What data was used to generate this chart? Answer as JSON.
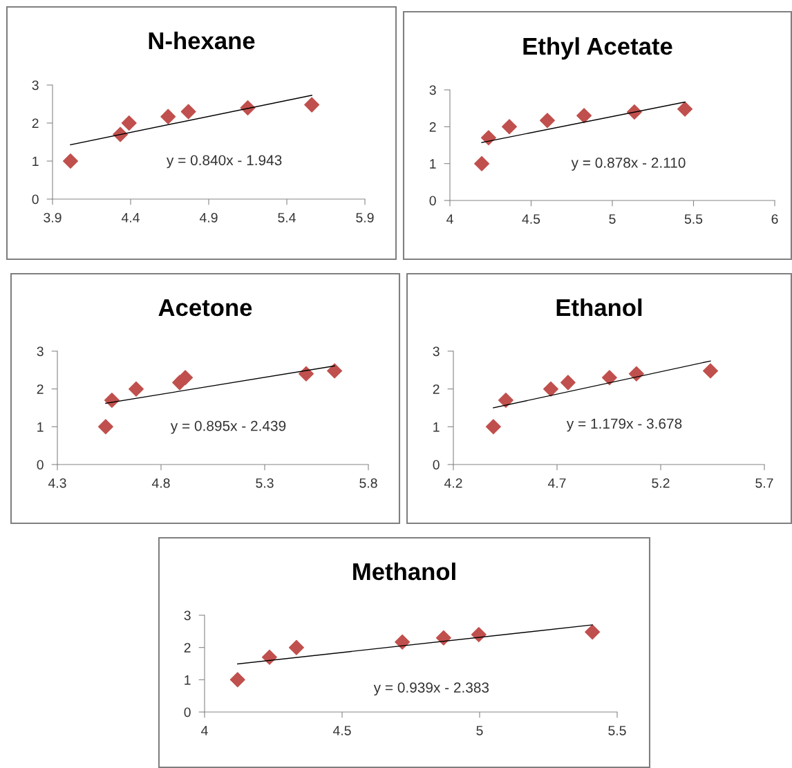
{
  "chart_data": [
    {
      "type": "scatter",
      "title": "N-hexane",
      "xlim": [
        3.9,
        5.9
      ],
      "xticks": [
        3.9,
        4.4,
        4.9,
        5.4,
        5.9
      ],
      "ylim": [
        0,
        3
      ],
      "yticks": [
        0,
        1,
        2,
        3
      ],
      "grid": false,
      "annotations": [
        "y = 0.840x - 1.943"
      ],
      "series": [
        {
          "type": "scatter",
          "marker": "diamond",
          "color": "#c0504d",
          "x": [
            4.015,
            4.334,
            4.39,
            4.64,
            4.77,
            5.15,
            5.56
          ],
          "values": [
            1,
            1.7,
            2,
            2.17,
            2.3,
            2.4,
            2.48
          ]
        },
        {
          "type": "line",
          "color": "#000000",
          "x": [
            4.015,
            5.56
          ],
          "values": [
            1.43,
            2.73
          ]
        }
      ]
    },
    {
      "type": "scatter",
      "title": "Ethyl Acetate",
      "xlim": [
        4,
        6
      ],
      "xticks": [
        4,
        4.5,
        5,
        5.5,
        6
      ],
      "ylim": [
        0,
        3
      ],
      "yticks": [
        0,
        1,
        2,
        3
      ],
      "grid": false,
      "annotations": [
        "y = 0.878x - 2.110"
      ],
      "series": [
        {
          "type": "scatter",
          "marker": "diamond",
          "color": "#c0504d",
          "x": [
            4.196,
            4.238,
            4.366,
            4.6,
            4.826,
            5.136,
            5.447
          ],
          "values": [
            1,
            1.7,
            2,
            2.17,
            2.3,
            2.4,
            2.48
          ]
        },
        {
          "type": "line",
          "color": "#000000",
          "x": [
            4.196,
            5.447
          ],
          "values": [
            1.57,
            2.67
          ]
        }
      ]
    },
    {
      "type": "scatter",
      "title": "Acetone",
      "xlim": [
        4.3,
        5.8
      ],
      "xticks": [
        4.3,
        4.8,
        5.3,
        5.8
      ],
      "ylim": [
        0,
        3
      ],
      "yticks": [
        0,
        1,
        2,
        3
      ],
      "grid": false,
      "annotations": [
        "y = 0.895x - 2.439"
      ],
      "series": [
        {
          "type": "scatter",
          "marker": "diamond",
          "color": "#c0504d",
          "x": [
            4.533,
            4.563,
            4.68,
            4.89,
            4.917,
            5.5,
            5.637
          ],
          "values": [
            1,
            1.7,
            2,
            2.17,
            2.3,
            2.4,
            2.48
          ]
        },
        {
          "type": "line",
          "color": "#000000",
          "x": [
            4.533,
            5.637
          ],
          "values": [
            1.62,
            2.61
          ]
        }
      ]
    },
    {
      "type": "scatter",
      "title": "Ethanol",
      "xlim": [
        4.2,
        5.7
      ],
      "xticks": [
        4.2,
        4.7,
        5.2,
        5.7
      ],
      "ylim": [
        0,
        3
      ],
      "yticks": [
        0,
        1,
        2,
        3
      ],
      "grid": false,
      "annotations": [
        "y = 1.179x - 3.678"
      ],
      "series": [
        {
          "type": "scatter",
          "marker": "diamond",
          "color": "#c0504d",
          "x": [
            4.393,
            4.453,
            4.67,
            4.753,
            4.953,
            5.083,
            5.44
          ],
          "values": [
            1,
            1.7,
            2,
            2.17,
            2.3,
            2.4,
            2.48
          ]
        },
        {
          "type": "line",
          "color": "#000000",
          "x": [
            4.393,
            5.44
          ],
          "values": [
            1.5,
            2.74
          ]
        }
      ]
    },
    {
      "type": "scatter",
      "title": "Methanol",
      "xlim": [
        4,
        5.5
      ],
      "xticks": [
        4,
        4.5,
        5,
        5.5
      ],
      "ylim": [
        0,
        3
      ],
      "yticks": [
        0,
        1,
        2,
        3
      ],
      "grid": false,
      "annotations": [
        "y = 0.939x - 2.383"
      ],
      "series": [
        {
          "type": "scatter",
          "marker": "diamond",
          "color": "#c0504d",
          "x": [
            4.12,
            4.236,
            4.334,
            4.719,
            4.869,
            4.997,
            5.41
          ],
          "values": [
            1,
            1.7,
            2,
            2.17,
            2.3,
            2.4,
            2.48
          ]
        },
        {
          "type": "line",
          "color": "#000000",
          "x": [
            4.12,
            5.41
          ],
          "values": [
            1.49,
            2.7
          ]
        }
      ]
    }
  ]
}
